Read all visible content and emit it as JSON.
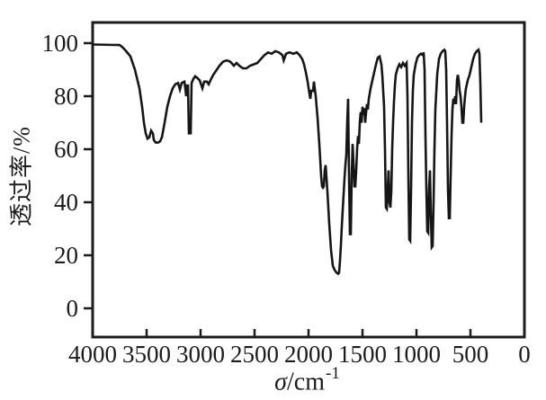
{
  "figure": {
    "background": "#ffffff",
    "line_color": "#161616",
    "axis_color": "#1c1c1c"
  },
  "chart_data": {
    "type": "line",
    "title": "",
    "grid": false,
    "legend": false,
    "x_axis": {
      "label_symbol": "σ",
      "label_unit": "/cm",
      "label_exponent": "-1",
      "ticks": [
        4000,
        3500,
        3000,
        2500,
        2000,
        1500,
        1000,
        500,
        0
      ],
      "range": [
        4000,
        0
      ],
      "direction": "decreasing"
    },
    "y_axis": {
      "label": "透过率/%",
      "ticks": [
        100,
        80,
        60,
        40,
        20,
        0
      ],
      "data_range": [
        0,
        100
      ]
    },
    "points": [
      [
        4000,
        99.5
      ],
      [
        3750,
        99.3
      ],
      [
        3725,
        98.5
      ],
      [
        3690,
        97
      ],
      [
        3650,
        95
      ],
      [
        3608,
        90
      ],
      [
        3567,
        83
      ],
      [
        3542,
        76
      ],
      [
        3525,
        70
      ],
      [
        3508,
        66
      ],
      [
        3492,
        64
      ],
      [
        3475,
        64.5
      ],
      [
        3458,
        67
      ],
      [
        3442,
        66
      ],
      [
        3433,
        63.5
      ],
      [
        3417,
        62.5
      ],
      [
        3392,
        62.5
      ],
      [
        3375,
        63
      ],
      [
        3358,
        64.5
      ],
      [
        3333,
        70
      ],
      [
        3308,
        76
      ],
      [
        3283,
        80
      ],
      [
        3258,
        83
      ],
      [
        3233,
        84.5
      ],
      [
        3208,
        85
      ],
      [
        3192,
        82.5
      ],
      [
        3175,
        85
      ],
      [
        3150,
        85.5
      ],
      [
        3142,
        83
      ],
      [
        3133,
        80
      ],
      [
        3125,
        84
      ],
      [
        3117,
        84
      ],
      [
        3108,
        66
      ],
      [
        3092,
        66
      ],
      [
        3083,
        85
      ],
      [
        3067,
        86.5
      ],
      [
        3050,
        87.5
      ],
      [
        3033,
        87
      ],
      [
        3008,
        86
      ],
      [
        2983,
        83
      ],
      [
        2967,
        85.5
      ],
      [
        2942,
        85.5
      ],
      [
        2925,
        84.5
      ],
      [
        2908,
        86
      ],
      [
        2883,
        88
      ],
      [
        2858,
        89.5
      ],
      [
        2825,
        91.5
      ],
      [
        2792,
        93
      ],
      [
        2758,
        93.5
      ],
      [
        2725,
        93
      ],
      [
        2692,
        91.5
      ],
      [
        2667,
        92.5
      ],
      [
        2642,
        91.5
      ],
      [
        2608,
        90.5
      ],
      [
        2575,
        90.5
      ],
      [
        2542,
        91.5
      ],
      [
        2508,
        92
      ],
      [
        2475,
        92.5
      ],
      [
        2442,
        94
      ],
      [
        2408,
        95.5
      ],
      [
        2375,
        96.5
      ],
      [
        2342,
        96
      ],
      [
        2308,
        97
      ],
      [
        2275,
        96.5
      ],
      [
        2242,
        95.5
      ],
      [
        2230,
        93.5
      ],
      [
        2208,
        96
      ],
      [
        2175,
        96.5
      ],
      [
        2142,
        96
      ],
      [
        2108,
        96.5
      ],
      [
        2083,
        95.5
      ],
      [
        2058,
        94
      ],
      [
        2042,
        92
      ],
      [
        2025,
        89
      ],
      [
        2008,
        85.5
      ],
      [
        1992,
        81
      ],
      [
        1983,
        79
      ],
      [
        1975,
        82
      ],
      [
        1958,
        82
      ],
      [
        1950,
        85.5
      ],
      [
        1933,
        80
      ],
      [
        1917,
        72
      ],
      [
        1900,
        62
      ],
      [
        1883,
        50
      ],
      [
        1875,
        46
      ],
      [
        1867,
        45.5
      ],
      [
        1858,
        46
      ],
      [
        1850,
        52
      ],
      [
        1842,
        54
      ],
      [
        1825,
        44
      ],
      [
        1808,
        32
      ],
      [
        1792,
        22
      ],
      [
        1775,
        16
      ],
      [
        1758,
        14.5
      ],
      [
        1742,
        13.5
      ],
      [
        1725,
        13
      ],
      [
        1717,
        13.5
      ],
      [
        1708,
        18
      ],
      [
        1700,
        24
      ],
      [
        1692,
        31
      ],
      [
        1683,
        37
      ],
      [
        1675,
        43
      ],
      [
        1667,
        49
      ],
      [
        1658,
        54
      ],
      [
        1650,
        58
      ],
      [
        1642,
        70
      ],
      [
        1633,
        79
      ],
      [
        1625,
        50
      ],
      [
        1617,
        28
      ],
      [
        1608,
        28
      ],
      [
        1600,
        50
      ],
      [
        1592,
        62
      ],
      [
        1583,
        55
      ],
      [
        1575,
        46
      ],
      [
        1567,
        46
      ],
      [
        1558,
        52
      ],
      [
        1550,
        60
      ],
      [
        1542,
        65
      ],
      [
        1533,
        62
      ],
      [
        1525,
        70
      ],
      [
        1517,
        74
      ],
      [
        1508,
        70
      ],
      [
        1500,
        76
      ],
      [
        1492,
        73
      ],
      [
        1483,
        75.5
      ],
      [
        1475,
        70
      ],
      [
        1467,
        74
      ],
      [
        1458,
        77
      ],
      [
        1450,
        75
      ],
      [
        1442,
        79
      ],
      [
        1425,
        83
      ],
      [
        1408,
        86
      ],
      [
        1392,
        89
      ],
      [
        1375,
        92
      ],
      [
        1358,
        94.5
      ],
      [
        1342,
        95
      ],
      [
        1325,
        92
      ],
      [
        1317,
        88
      ],
      [
        1308,
        82
      ],
      [
        1300,
        76
      ],
      [
        1292,
        60
      ],
      [
        1283,
        38
      ],
      [
        1275,
        37.5
      ],
      [
        1267,
        45
      ],
      [
        1258,
        52
      ],
      [
        1250,
        40
      ],
      [
        1242,
        38
      ],
      [
        1233,
        44
      ],
      [
        1225,
        60
      ],
      [
        1217,
        70
      ],
      [
        1208,
        78
      ],
      [
        1200,
        84
      ],
      [
        1192,
        88
      ],
      [
        1175,
        90.5
      ],
      [
        1158,
        92
      ],
      [
        1142,
        91
      ],
      [
        1125,
        92.5
      ],
      [
        1108,
        91.5
      ],
      [
        1092,
        92.5
      ],
      [
        1083,
        80
      ],
      [
        1075,
        50
      ],
      [
        1067,
        26
      ],
      [
        1058,
        25.5
      ],
      [
        1050,
        45
      ],
      [
        1042,
        70
      ],
      [
        1033,
        82
      ],
      [
        1025,
        88
      ],
      [
        1008,
        92
      ],
      [
        992,
        94.5
      ],
      [
        975,
        95.5
      ],
      [
        958,
        96
      ],
      [
        942,
        95.5
      ],
      [
        933,
        96.5
      ],
      [
        925,
        90
      ],
      [
        917,
        65
      ],
      [
        908,
        45
      ],
      [
        900,
        29
      ],
      [
        892,
        28.5
      ],
      [
        883,
        45
      ],
      [
        875,
        52
      ],
      [
        867,
        35
      ],
      [
        858,
        23
      ],
      [
        850,
        23.5
      ],
      [
        842,
        40
      ],
      [
        833,
        60
      ],
      [
        825,
        75
      ],
      [
        808,
        88
      ],
      [
        792,
        94
      ],
      [
        775,
        96
      ],
      [
        758,
        97
      ],
      [
        742,
        97.5
      ],
      [
        733,
        97
      ],
      [
        725,
        90
      ],
      [
        717,
        70
      ],
      [
        708,
        45
      ],
      [
        700,
        34
      ],
      [
        692,
        34
      ],
      [
        683,
        50
      ],
      [
        675,
        65
      ],
      [
        667,
        75
      ],
      [
        658,
        79
      ],
      [
        650,
        77
      ],
      [
        642,
        80
      ],
      [
        633,
        77
      ],
      [
        625,
        86
      ],
      [
        617,
        88
      ],
      [
        608,
        86
      ],
      [
        600,
        82
      ],
      [
        592,
        80
      ],
      [
        583,
        76
      ],
      [
        575,
        70
      ],
      [
        567,
        70
      ],
      [
        558,
        76
      ],
      [
        550,
        80
      ],
      [
        542,
        83
      ],
      [
        525,
        86
      ],
      [
        508,
        88
      ],
      [
        492,
        91
      ],
      [
        475,
        94
      ],
      [
        458,
        96
      ],
      [
        442,
        97
      ],
      [
        425,
        97.5
      ],
      [
        417,
        96
      ],
      [
        408,
        85
      ],
      [
        400,
        70
      ]
    ]
  }
}
